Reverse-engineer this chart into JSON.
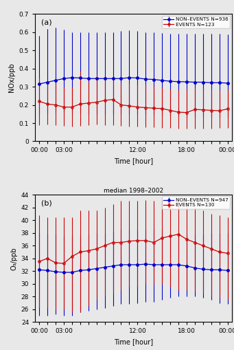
{
  "title_b": "median 1998–2002",
  "label_a": "(a)",
  "label_b": "(b)",
  "xlabel": "Time [hour]",
  "ylabel_a": "NOx/ppb",
  "ylabel_b": "O₃/ppb",
  "time_labels_a": [
    "00:00",
    "",
    "",
    "03:00",
    "",
    "",
    "",
    "",
    "",
    "",
    "",
    "",
    "12:00",
    "",
    "",
    "",
    "",
    "",
    "18:00",
    "",
    "",
    "",
    "",
    "00:00"
  ],
  "time_labels_b": [
    "00:00",
    "",
    "",
    "03:00",
    "",
    "",
    "",
    "",
    "",
    "",
    "",
    "",
    "12:00",
    "",
    "",
    "",
    "",
    "",
    "18:00",
    "",
    "",
    "",
    "",
    "00:00"
  ],
  "time_ticks": [
    0,
    1,
    2,
    3,
    4,
    5,
    6,
    7,
    8,
    9,
    10,
    11,
    12,
    13,
    14,
    15,
    16,
    17,
    18,
    19,
    20,
    21,
    22,
    23
  ],
  "legend_a_nonevents": "NON–EVENTS N=936",
  "legend_a_events": "EVENTS N=123",
  "legend_b_nonevents": "NON–EVENTS N=947",
  "legend_b_events": "EVENTS N=130",
  "color_blue": "#0000CD",
  "color_red": "#CC0000",
  "bg_color": "#e8e8e8",
  "ylim_a": [
    0,
    0.7
  ],
  "ylim_b": [
    24,
    44
  ],
  "yticks_a": [
    0,
    0.1,
    0.2,
    0.3,
    0.4,
    0.5,
    0.6,
    0.7
  ],
  "yticks_b": [
    24,
    26,
    28,
    30,
    32,
    34,
    36,
    38,
    40,
    42,
    44
  ],
  "hours": [
    0,
    1,
    2,
    3,
    4,
    5,
    6,
    7,
    8,
    9,
    10,
    11,
    12,
    13,
    14,
    15,
    16,
    17,
    18,
    19,
    20,
    21,
    22,
    23
  ],
  "a_blue_med": [
    0.315,
    0.325,
    0.335,
    0.345,
    0.35,
    0.348,
    0.345,
    0.345,
    0.345,
    0.345,
    0.345,
    0.35,
    0.348,
    0.342,
    0.34,
    0.335,
    0.33,
    0.328,
    0.327,
    0.325,
    0.325,
    0.322,
    0.322,
    0.32
  ],
  "a_blue_lo": [
    0.145,
    0.155,
    0.16,
    0.16,
    0.158,
    0.155,
    0.15,
    0.148,
    0.148,
    0.148,
    0.148,
    0.148,
    0.148,
    0.148,
    0.145,
    0.143,
    0.14,
    0.138,
    0.135,
    0.133,
    0.133,
    0.133,
    0.133,
    0.133
  ],
  "a_blue_hi": [
    0.58,
    0.62,
    0.625,
    0.615,
    0.6,
    0.6,
    0.6,
    0.6,
    0.6,
    0.6,
    0.605,
    0.61,
    0.605,
    0.6,
    0.598,
    0.595,
    0.59,
    0.59,
    0.59,
    0.59,
    0.59,
    0.59,
    0.59,
    0.588
  ],
  "a_red_med": [
    0.22,
    0.205,
    0.2,
    0.188,
    0.188,
    0.205,
    0.21,
    0.215,
    0.225,
    0.23,
    0.2,
    0.195,
    0.188,
    0.185,
    0.182,
    0.18,
    0.17,
    0.16,
    0.158,
    0.175,
    0.173,
    0.17,
    0.168,
    0.178
  ],
  "a_red_lo": [
    0.09,
    0.092,
    0.09,
    0.085,
    0.082,
    0.085,
    0.09,
    0.092,
    0.09,
    0.09,
    0.085,
    0.082,
    0.08,
    0.078,
    0.076,
    0.075,
    0.072,
    0.07,
    0.07,
    0.07,
    0.07,
    0.07,
    0.072,
    0.073
  ],
  "a_red_hi": [
    0.35,
    0.33,
    0.32,
    0.295,
    0.295,
    0.385,
    0.33,
    0.37,
    0.355,
    0.345,
    0.325,
    0.318,
    0.31,
    0.31,
    0.305,
    0.295,
    0.285,
    0.28,
    0.29,
    0.295,
    0.29,
    0.285,
    0.28,
    0.285
  ],
  "b_blue_med": [
    32.2,
    32.1,
    31.9,
    31.8,
    31.8,
    32.1,
    32.2,
    32.4,
    32.6,
    32.8,
    33.0,
    33.0,
    33.0,
    33.1,
    33.0,
    33.0,
    33.0,
    33.0,
    32.8,
    32.5,
    32.3,
    32.2,
    32.2,
    32.1
  ],
  "b_blue_lo": [
    25.0,
    25.0,
    25.2,
    25.0,
    25.0,
    25.5,
    25.8,
    26.0,
    26.2,
    26.5,
    26.8,
    26.8,
    27.0,
    27.2,
    27.2,
    27.5,
    27.8,
    28.0,
    28.0,
    28.0,
    27.8,
    27.5,
    27.0,
    26.8
  ],
  "b_blue_hi": [
    38.0,
    37.8,
    37.8,
    37.5,
    37.5,
    37.5,
    37.8,
    38.0,
    38.0,
    38.2,
    38.5,
    38.5,
    38.5,
    38.5,
    38.5,
    38.5,
    38.0,
    37.8,
    37.8,
    37.8,
    37.8,
    38.0,
    38.0,
    38.0
  ],
  "b_red_med": [
    33.5,
    34.0,
    33.3,
    33.2,
    34.3,
    35.0,
    35.2,
    35.5,
    36.0,
    36.5,
    36.5,
    36.7,
    36.8,
    36.8,
    36.5,
    37.2,
    37.5,
    37.8,
    37.0,
    36.5,
    36.0,
    35.5,
    35.0,
    34.8
  ],
  "b_red_lo": [
    26.3,
    26.3,
    25.9,
    26.0,
    25.5,
    25.5,
    26.5,
    27.5,
    28.0,
    28.5,
    29.0,
    29.5,
    29.5,
    30.0,
    30.0,
    30.0,
    29.5,
    29.0,
    29.0,
    28.8,
    28.5,
    28.0,
    27.8,
    27.5
  ],
  "b_red_hi": [
    40.8,
    40.5,
    40.5,
    40.5,
    40.5,
    41.5,
    41.5,
    41.5,
    42.0,
    42.5,
    43.0,
    43.0,
    43.0,
    43.2,
    43.0,
    43.2,
    43.0,
    42.8,
    42.5,
    42.0,
    41.5,
    41.0,
    40.8,
    40.5
  ]
}
